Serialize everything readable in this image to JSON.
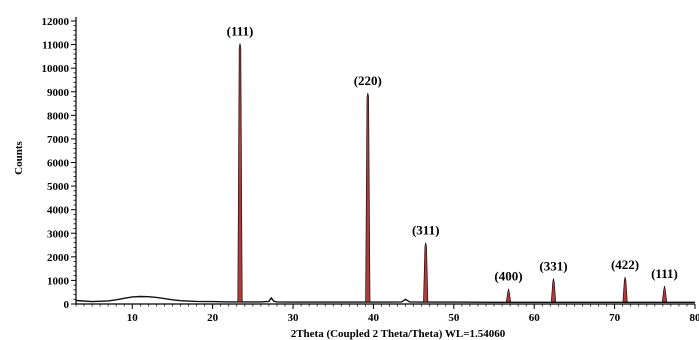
{
  "chart_data": {
    "type": "line",
    "xlabel": "2Theta (Coupled 2 Theta/Theta) WL=1.54060",
    "ylabel": "Counts",
    "xlim": [
      3,
      80
    ],
    "ylim": [
      0,
      12000
    ],
    "x_ticks": [
      10,
      20,
      30,
      40,
      50,
      60,
      70,
      80
    ],
    "y_ticks": [
      0,
      1000,
      2000,
      3000,
      4000,
      5000,
      6000,
      7000,
      8000,
      9000,
      10000,
      11000,
      12000
    ],
    "grid": false,
    "baseline": {
      "x": [
        3,
        5,
        7,
        8,
        9,
        10,
        11,
        12,
        13,
        14,
        15,
        16,
        18,
        20,
        22,
        23,
        24,
        26,
        27,
        27.3,
        27.6,
        28,
        30,
        35,
        38,
        39,
        40,
        42,
        43.5,
        44,
        44.5,
        46,
        47,
        50,
        55,
        60,
        65,
        70,
        75,
        80
      ],
      "y": [
        150,
        100,
        130,
        180,
        240,
        300,
        320,
        310,
        280,
        230,
        180,
        140,
        110,
        100,
        90,
        90,
        90,
        90,
        110,
        260,
        120,
        90,
        80,
        80,
        80,
        80,
        80,
        80,
        90,
        200,
        90,
        80,
        80,
        80,
        70,
        70,
        70,
        70,
        70,
        70
      ]
    },
    "peaks": [
      {
        "label": "(111)",
        "x": 23.4,
        "y": 11050
      },
      {
        "label": "(220)",
        "x": 39.3,
        "y": 8950
      },
      {
        "label": "(311)",
        "x": 46.5,
        "y": 2600
      },
      {
        "label": "(400)",
        "x": 56.8,
        "y": 650
      },
      {
        "label": "(331)",
        "x": 62.4,
        "y": 1080
      },
      {
        "label": "(422)",
        "x": 71.3,
        "y": 1150
      },
      {
        "label": "(111)",
        "x": 76.2,
        "y": 760
      }
    ],
    "colors": {
      "trace": "#111111",
      "peak_fill": "#b23a3a",
      "axis": "#000000"
    }
  }
}
